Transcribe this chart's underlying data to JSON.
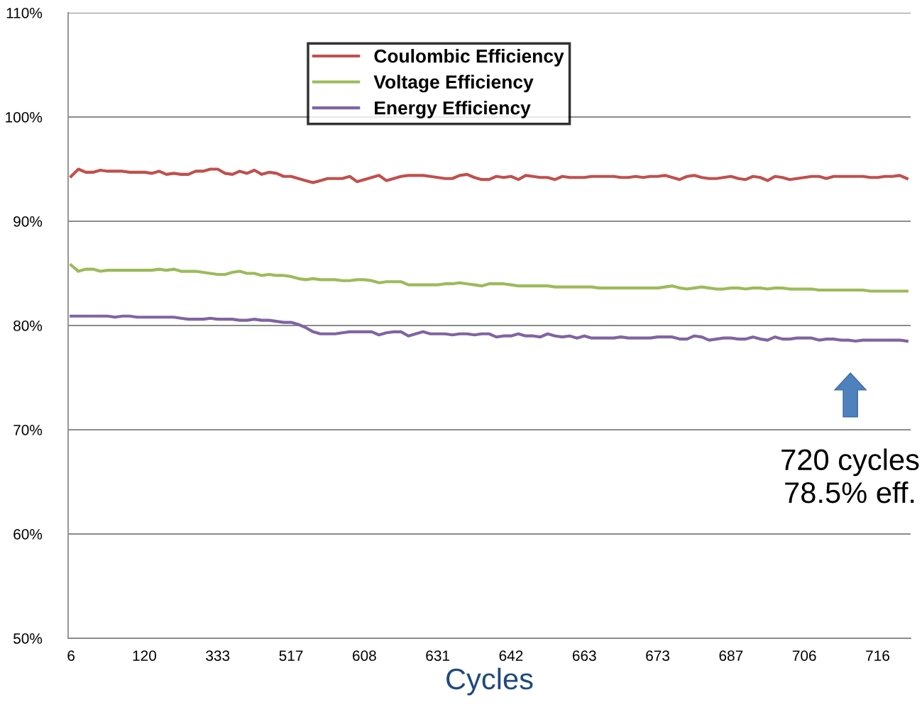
{
  "chart_data": {
    "type": "line",
    "xlabel": "Cycles",
    "categories": [
      "6",
      null,
      null,
      null,
      null,
      null,
      null,
      null,
      null,
      null,
      "120",
      null,
      null,
      null,
      null,
      null,
      null,
      null,
      null,
      null,
      "333",
      null,
      null,
      null,
      null,
      null,
      null,
      null,
      null,
      null,
      "517",
      null,
      null,
      null,
      null,
      null,
      null,
      null,
      null,
      null,
      "608",
      null,
      null,
      null,
      null,
      null,
      null,
      null,
      null,
      null,
      "631",
      null,
      null,
      null,
      null,
      null,
      null,
      null,
      null,
      null,
      "642",
      null,
      null,
      null,
      null,
      null,
      null,
      null,
      null,
      null,
      "663",
      null,
      null,
      null,
      null,
      null,
      null,
      null,
      null,
      null,
      "673",
      null,
      null,
      null,
      null,
      null,
      null,
      null,
      null,
      null,
      "687",
      null,
      null,
      null,
      null,
      null,
      null,
      null,
      null,
      null,
      "706",
      null,
      null,
      null,
      null,
      null,
      null,
      null,
      null,
      null,
      "716",
      null,
      null,
      null,
      null
    ],
    "series": [
      {
        "name": "Coulombic Efficiency",
        "color": "#c0504d",
        "values": [
          94.3,
          95.0,
          94.7,
          94.7,
          94.9,
          94.8,
          94.8,
          94.8,
          94.7,
          94.7,
          94.7,
          94.6,
          94.8,
          94.5,
          94.6,
          94.5,
          94.5,
          94.8,
          94.8,
          95.0,
          95.0,
          94.6,
          94.5,
          94.8,
          94.6,
          94.9,
          94.5,
          94.7,
          94.6,
          94.3,
          94.3,
          94.1,
          93.9,
          93.7,
          93.9,
          94.1,
          94.1,
          94.1,
          94.3,
          93.8,
          94.0,
          94.2,
          94.4,
          93.9,
          94.1,
          94.3,
          94.4,
          94.4,
          94.4,
          94.3,
          94.2,
          94.1,
          94.1,
          94.4,
          94.5,
          94.2,
          94.0,
          94.0,
          94.3,
          94.2,
          94.3,
          94.0,
          94.4,
          94.3,
          94.2,
          94.2,
          94.0,
          94.3,
          94.2,
          94.2,
          94.2,
          94.3,
          94.3,
          94.3,
          94.3,
          94.2,
          94.2,
          94.3,
          94.2,
          94.3,
          94.3,
          94.4,
          94.2,
          94.0,
          94.3,
          94.4,
          94.2,
          94.1,
          94.1,
          94.2,
          94.3,
          94.1,
          94.0,
          94.3,
          94.2,
          93.9,
          94.3,
          94.2,
          94.0,
          94.1,
          94.2,
          94.3,
          94.3,
          94.1,
          94.3,
          94.3,
          94.3,
          94.3,
          94.3,
          94.2,
          94.2,
          94.3,
          94.3,
          94.4,
          94.1
        ]
      },
      {
        "name": "Voltage Efficiency",
        "color": "#9bbb59",
        "values": [
          85.8,
          85.2,
          85.4,
          85.4,
          85.2,
          85.3,
          85.3,
          85.3,
          85.3,
          85.3,
          85.3,
          85.3,
          85.4,
          85.3,
          85.4,
          85.2,
          85.2,
          85.2,
          85.1,
          85.0,
          84.9,
          84.9,
          85.1,
          85.2,
          85.0,
          85.0,
          84.8,
          84.9,
          84.8,
          84.8,
          84.7,
          84.5,
          84.4,
          84.5,
          84.4,
          84.4,
          84.4,
          84.3,
          84.3,
          84.4,
          84.4,
          84.3,
          84.1,
          84.2,
          84.2,
          84.2,
          83.9,
          83.9,
          83.9,
          83.9,
          83.9,
          84.0,
          84.0,
          84.1,
          84.0,
          83.9,
          83.8,
          84.0,
          84.0,
          84.0,
          83.9,
          83.8,
          83.8,
          83.8,
          83.8,
          83.8,
          83.7,
          83.7,
          83.7,
          83.7,
          83.7,
          83.7,
          83.6,
          83.6,
          83.6,
          83.6,
          83.6,
          83.6,
          83.6,
          83.6,
          83.6,
          83.7,
          83.8,
          83.6,
          83.5,
          83.6,
          83.7,
          83.6,
          83.5,
          83.5,
          83.6,
          83.6,
          83.5,
          83.6,
          83.6,
          83.5,
          83.6,
          83.6,
          83.5,
          83.5,
          83.5,
          83.5,
          83.4,
          83.4,
          83.4,
          83.4,
          83.4,
          83.4,
          83.4,
          83.3,
          83.3,
          83.3,
          83.3,
          83.3,
          83.3
        ]
      },
      {
        "name": "Energy Efficiency",
        "color": "#8064a2",
        "values": [
          80.9,
          80.9,
          80.9,
          80.9,
          80.9,
          80.9,
          80.8,
          80.9,
          80.9,
          80.8,
          80.8,
          80.8,
          80.8,
          80.8,
          80.8,
          80.7,
          80.6,
          80.6,
          80.6,
          80.7,
          80.6,
          80.6,
          80.6,
          80.5,
          80.5,
          80.6,
          80.5,
          80.5,
          80.4,
          80.3,
          80.3,
          80.1,
          79.8,
          79.4,
          79.2,
          79.2,
          79.2,
          79.3,
          79.4,
          79.4,
          79.4,
          79.4,
          79.1,
          79.3,
          79.4,
          79.4,
          79.0,
          79.2,
          79.4,
          79.2,
          79.2,
          79.2,
          79.1,
          79.2,
          79.2,
          79.1,
          79.2,
          79.2,
          78.9,
          79.0,
          79.0,
          79.2,
          79.0,
          79.0,
          78.9,
          79.2,
          79.0,
          78.9,
          79.0,
          78.8,
          79.0,
          78.8,
          78.8,
          78.8,
          78.8,
          78.9,
          78.8,
          78.8,
          78.8,
          78.8,
          78.9,
          78.9,
          78.9,
          78.7,
          78.7,
          79.0,
          78.9,
          78.6,
          78.7,
          78.8,
          78.8,
          78.7,
          78.7,
          78.9,
          78.7,
          78.6,
          78.9,
          78.7,
          78.7,
          78.8,
          78.8,
          78.8,
          78.6,
          78.7,
          78.7,
          78.6,
          78.6,
          78.5,
          78.6,
          78.6,
          78.6,
          78.6,
          78.6,
          78.6,
          78.5
        ]
      }
    ],
    "ylim": [
      50,
      110
    ],
    "yticks": [
      {
        "value": 50,
        "label": "50%"
      },
      {
        "value": 60,
        "label": "60%"
      },
      {
        "value": 70,
        "label": "70%"
      },
      {
        "value": 80,
        "label": "80%"
      },
      {
        "value": 90,
        "label": "90%"
      },
      {
        "value": 100,
        "label": "100%"
      },
      {
        "value": 110,
        "label": "110%"
      }
    ],
    "grid": "y",
    "legend": "top",
    "marker": "none",
    "line_style": "solid",
    "annotations": [
      "720 cycles\n78.5% eff."
    ]
  }
}
